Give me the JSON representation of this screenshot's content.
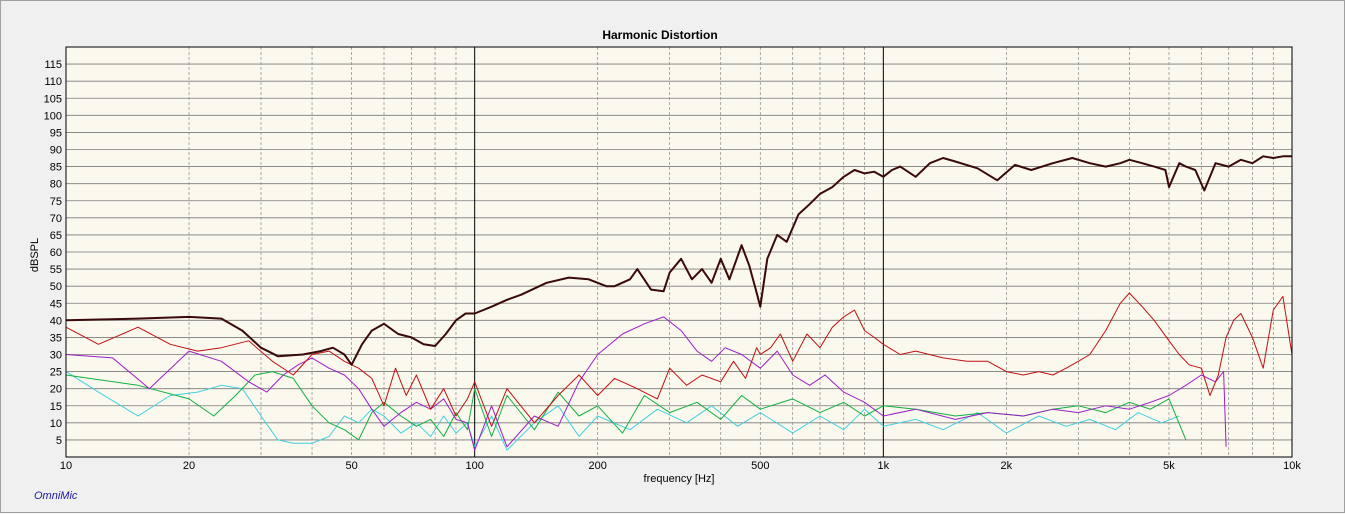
{
  "brand": "OmniMic",
  "chart_data": {
    "type": "line",
    "title": "Harmonic Distortion",
    "xlabel": "frequency [Hz]",
    "ylabel": "dBSPL",
    "xscale": "log",
    "xlim": [
      10,
      10000
    ],
    "ylim": [
      0,
      120
    ],
    "grid": true,
    "xticks": [
      {
        "v": 10,
        "label": "10"
      },
      {
        "v": 20,
        "label": "20"
      },
      {
        "v": 50,
        "label": "50"
      },
      {
        "v": 100,
        "label": "100"
      },
      {
        "v": 200,
        "label": "200"
      },
      {
        "v": 500,
        "label": "500"
      },
      {
        "v": 1000,
        "label": "1k"
      },
      {
        "v": 2000,
        "label": "2k"
      },
      {
        "v": 5000,
        "label": "5k"
      },
      {
        "v": 10000,
        "label": "10k"
      }
    ],
    "yticks": [
      5,
      10,
      15,
      20,
      25,
      30,
      35,
      40,
      45,
      50,
      55,
      60,
      65,
      70,
      75,
      80,
      85,
      90,
      95,
      100,
      105,
      110,
      115
    ],
    "colors": {
      "fundamental": "#3a0a0a",
      "h2": "#c01010",
      "h3": "#9a20c8",
      "h4": "#10b040",
      "h5": "#40d0e0",
      "plot_bg": "#fbf8ee",
      "grid": "#9a9a9a"
    },
    "series": [
      {
        "key": "fundamental",
        "x": [
          10,
          15,
          20,
          24,
          27,
          30,
          33,
          38,
          42,
          45,
          48,
          50,
          53,
          56,
          60,
          65,
          70,
          75,
          80,
          85,
          90,
          95,
          100,
          110,
          120,
          130,
          150,
          170,
          190,
          210,
          220,
          240,
          250,
          270,
          290,
          300,
          320,
          340,
          360,
          380,
          400,
          420,
          450,
          470,
          490,
          500,
          520,
          550,
          580,
          620,
          660,
          700,
          750,
          800,
          850,
          900,
          950,
          1000,
          1050,
          1100,
          1200,
          1300,
          1400,
          1500,
          1700,
          1900,
          2100,
          2300,
          2600,
          2900,
          3200,
          3500,
          3800,
          4000,
          4300,
          4600,
          4900,
          5000,
          5300,
          5500,
          5800,
          6100,
          6500,
          7000,
          7500,
          8000,
          8500,
          9000,
          9500,
          10000
        ],
        "y": [
          40,
          40.5,
          41,
          40.5,
          37,
          32,
          29.5,
          30,
          31,
          32,
          30,
          27,
          33,
          37,
          39,
          36,
          35,
          33,
          32.5,
          36,
          40,
          42,
          42,
          44,
          46,
          47.5,
          51,
          52.5,
          52,
          50,
          50,
          52,
          55,
          49,
          48.5,
          54,
          58,
          52,
          55,
          51,
          58,
          52,
          62,
          56,
          48,
          44,
          58,
          65,
          63,
          71,
          74,
          77,
          79,
          82,
          84,
          83,
          83.5,
          82,
          84,
          85,
          82,
          86,
          87.5,
          86.5,
          84.5,
          81,
          85.5,
          84,
          86,
          87.5,
          86,
          85,
          86,
          87,
          86,
          85,
          84,
          79,
          86,
          85,
          84,
          78,
          86,
          85,
          87,
          86,
          88,
          87.5,
          88,
          88
        ]
      },
      {
        "key": "h2",
        "x": [
          10,
          12,
          15,
          18,
          21,
          24,
          28,
          32,
          36,
          40,
          44,
          48,
          52,
          56,
          60,
          64,
          68,
          72,
          78,
          84,
          90,
          96,
          100,
          110,
          120,
          140,
          160,
          180,
          200,
          220,
          250,
          280,
          300,
          330,
          360,
          400,
          430,
          460,
          490,
          500,
          530,
          560,
          600,
          650,
          700,
          750,
          800,
          850,
          900,
          950,
          1000,
          1100,
          1200,
          1400,
          1600,
          1800,
          2000,
          2200,
          2400,
          2600,
          2800,
          3000,
          3200,
          3500,
          3800,
          4000,
          4300,
          4600,
          5000,
          5300,
          5600,
          6000,
          6300,
          6600,
          6900,
          7200,
          7500,
          8000,
          8500,
          9000,
          9500,
          10000
        ],
        "y": [
          38,
          33,
          38,
          33,
          31,
          32,
          34,
          28,
          24,
          30,
          31,
          28,
          26,
          23,
          15,
          26,
          18,
          24,
          14,
          20,
          12,
          17,
          22,
          9,
          20,
          10,
          18,
          24,
          18,
          23,
          20,
          17,
          26,
          21,
          24,
          22,
          28,
          23,
          32,
          30,
          32,
          36,
          28,
          36,
          32,
          38,
          41,
          43,
          37,
          35,
          33,
          30,
          31,
          29,
          28,
          28,
          25,
          24,
          25,
          24,
          26,
          28,
          30,
          37,
          45,
          48,
          44,
          40,
          34,
          30,
          27,
          26,
          18,
          24,
          35,
          40,
          42,
          35,
          26,
          43,
          47,
          30
        ]
      },
      {
        "key": "h3",
        "x": [
          10,
          13,
          16,
          20,
          24,
          28,
          31,
          34,
          37,
          40,
          44,
          48,
          52,
          56,
          60,
          66,
          72,
          78,
          84,
          90,
          96,
          100,
          110,
          120,
          140,
          160,
          180,
          200,
          230,
          260,
          290,
          320,
          350,
          380,
          410,
          450,
          500,
          550,
          600,
          660,
          720,
          800,
          900,
          1000,
          1200,
          1500,
          1800,
          2200,
          2600,
          3000,
          3500,
          4000,
          4500,
          5000,
          5500,
          6000,
          6500,
          6800,
          6900
        ],
        "y": [
          30,
          29,
          20,
          31,
          28,
          22,
          19,
          24,
          27,
          29,
          26,
          24,
          20,
          14,
          9,
          13,
          16,
          14,
          17,
          11,
          10,
          2,
          15,
          3,
          12,
          9,
          22,
          30,
          36,
          39,
          41,
          37,
          31,
          28,
          32,
          30,
          26,
          31,
          24,
          21,
          24,
          19,
          16,
          12,
          14,
          11,
          13,
          12,
          14,
          13,
          15,
          14,
          16,
          18,
          21,
          24,
          22,
          25,
          3
        ]
      },
      {
        "key": "h4",
        "x": [
          10,
          15,
          20,
          23,
          26,
          29,
          32,
          36,
          40,
          44,
          48,
          52,
          56,
          60,
          66,
          72,
          78,
          84,
          90,
          96,
          100,
          110,
          120,
          140,
          160,
          180,
          200,
          230,
          260,
          300,
          350,
          400,
          450,
          500,
          600,
          700,
          800,
          900,
          1000,
          1200,
          1500,
          1800,
          2200,
          2600,
          3000,
          3500,
          4000,
          4500,
          5000,
          5500
        ],
        "y": [
          24,
          21,
          17,
          12,
          18,
          24,
          25,
          23,
          15,
          10,
          8,
          5,
          13,
          16,
          12,
          9,
          11,
          6,
          13,
          8,
          20,
          6,
          18,
          8,
          19,
          12,
          15,
          7,
          18,
          13,
          16,
          11,
          18,
          14,
          17,
          13,
          16,
          12,
          15,
          14,
          12,
          13,
          12,
          14,
          15,
          13,
          16,
          14,
          17,
          5
        ]
      },
      {
        "key": "h5",
        "x": [
          10,
          12,
          15,
          18,
          21,
          24,
          27,
          30,
          33,
          36,
          40,
          44,
          48,
          52,
          56,
          60,
          66,
          72,
          78,
          84,
          90,
          96,
          100,
          110,
          120,
          140,
          160,
          180,
          200,
          240,
          280,
          330,
          380,
          440,
          500,
          600,
          700,
          800,
          900,
          1000,
          1200,
          1400,
          1700,
          2000,
          2400,
          2800,
          3200,
          3700,
          4200,
          4800,
          5300
        ],
        "y": [
          25,
          19,
          12,
          18,
          19,
          21,
          20,
          12,
          5,
          4,
          4,
          6,
          12,
          10,
          14,
          12,
          7,
          10,
          6,
          12,
          7,
          10,
          3,
          12,
          2,
          10,
          15,
          6,
          12,
          8,
          14,
          10,
          15,
          9,
          13,
          7,
          12,
          8,
          14,
          9,
          11,
          8,
          13,
          7,
          12,
          9,
          11,
          8,
          13,
          10,
          12
        ]
      }
    ]
  }
}
